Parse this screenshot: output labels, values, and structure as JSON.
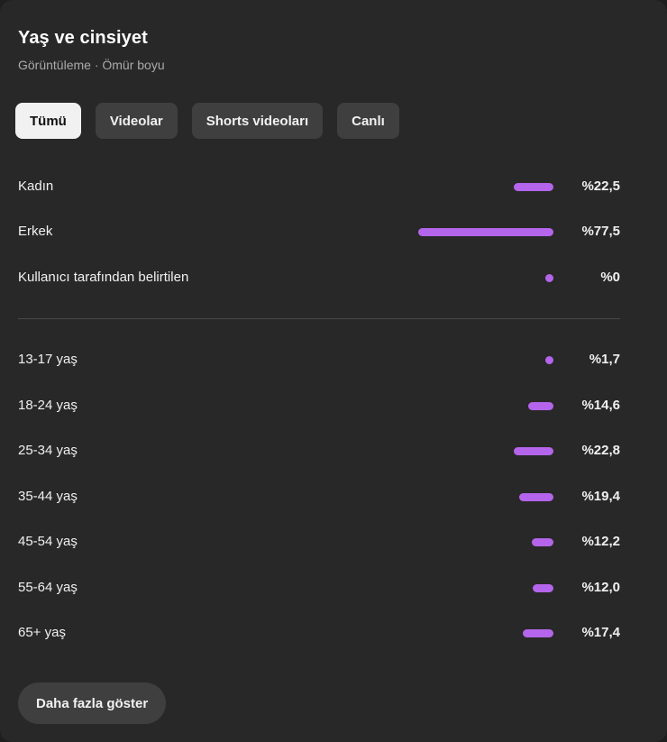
{
  "header": {
    "title": "Yaş ve cinsiyet",
    "subtitle": "Görüntüleme · Ömür boyu"
  },
  "tabs": [
    {
      "label": "Tümü",
      "active": true
    },
    {
      "label": "Videolar",
      "active": false
    },
    {
      "label": "Shorts videoları",
      "active": false
    },
    {
      "label": "Canlı",
      "active": false
    }
  ],
  "gender": [
    {
      "label": "Kadın",
      "value": "%22,5",
      "percent": 22.5
    },
    {
      "label": "Erkek",
      "value": "%77,5",
      "percent": 77.5
    },
    {
      "label": "Kullanıcı tarafından belirtilen",
      "value": "%0",
      "percent": 0
    }
  ],
  "age": [
    {
      "label": "13-17 yaş",
      "value": "%1,7",
      "percent": 1.7
    },
    {
      "label": "18-24 yaş",
      "value": "%14,6",
      "percent": 14.6
    },
    {
      "label": "25-34 yaş",
      "value": "%22,8",
      "percent": 22.8
    },
    {
      "label": "35-44 yaş",
      "value": "%19,4",
      "percent": 19.4
    },
    {
      "label": "45-54 yaş",
      "value": "%12,2",
      "percent": 12.2
    },
    {
      "label": "55-64 yaş",
      "value": "%12,0",
      "percent": 12.0
    },
    {
      "label": "65+ yaş",
      "value": "%17,4",
      "percent": 17.4
    }
  ],
  "footer": {
    "more_label": "Daha fazla göster"
  },
  "colors": {
    "bar": "#b465eb",
    "background": "#282828"
  }
}
